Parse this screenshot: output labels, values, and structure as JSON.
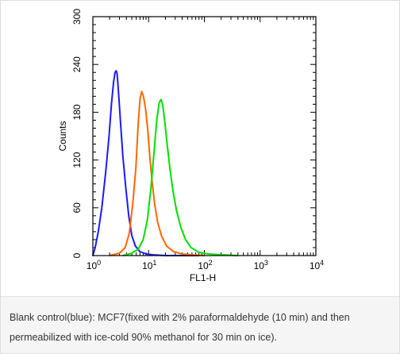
{
  "chart_data": {
    "type": "line",
    "title": "",
    "xlabel": "FL1-H",
    "ylabel": "Counts",
    "x_scale": "log",
    "xlim": [
      1,
      10000
    ],
    "ylim": [
      0,
      300
    ],
    "x_ticks": [
      {
        "base": "10",
        "exp": "0"
      },
      {
        "base": "10",
        "exp": "1"
      },
      {
        "base": "10",
        "exp": "2"
      },
      {
        "base": "10",
        "exp": "3"
      },
      {
        "base": "10",
        "exp": "4"
      }
    ],
    "y_ticks": [
      "0",
      "60",
      "120",
      "180",
      "240",
      "300"
    ],
    "grid": false,
    "series": [
      {
        "color": "#1a1aff",
        "x": [
          1.0,
          1.1,
          1.25,
          1.45,
          1.7,
          1.95,
          2.15,
          2.35,
          2.5,
          2.62,
          2.72,
          2.82,
          2.95,
          3.15,
          3.45,
          3.9,
          4.4,
          5.0,
          5.8,
          7.0,
          9.0,
          12.0,
          20.0,
          40.0,
          80.0
        ],
        "y": [
          0,
          10,
          30,
          60,
          105,
          150,
          190,
          218,
          230,
          232,
          229,
          215,
          195,
          165,
          125,
          85,
          50,
          25,
          12,
          5,
          2,
          1,
          0,
          0,
          0
        ]
      },
      {
        "color": "#ff6600",
        "x": [
          2.0,
          3.0,
          3.8,
          4.5,
          5.2,
          5.9,
          6.5,
          7.0,
          7.5,
          8.1,
          8.8,
          9.6,
          10.5,
          11.5,
          12.8,
          14.5,
          17.0,
          21.0,
          28.0,
          40.0,
          60.0,
          100.0
        ],
        "y": [
          0,
          3,
          10,
          28,
          65,
          110,
          165,
          196,
          206,
          200,
          185,
          160,
          125,
          95,
          65,
          42,
          25,
          12,
          5,
          2,
          1,
          0
        ]
      },
      {
        "color": "#00e000",
        "x": [
          3.5,
          5.0,
          6.5,
          8.0,
          9.5,
          11.0,
          12.5,
          14.0,
          15.5,
          16.8,
          18.0,
          19.5,
          21.5,
          24.0,
          27.5,
          32.0,
          38.0,
          46.0,
          58.0,
          80.0,
          120.0,
          200.0,
          400.0
        ],
        "y": [
          0,
          3,
          8,
          20,
          45,
          85,
          130,
          170,
          192,
          196,
          188,
          168,
          140,
          110,
          80,
          55,
          35,
          20,
          10,
          4,
          2,
          1,
          0
        ]
      }
    ]
  },
  "caption": {
    "line1": "Blank control(blue): MCF7(fixed with 2% paraformaldehyde (10 min) and then",
    "line2": "permeabilized with ice-cold 90% methanol for 30 min on ice)."
  }
}
